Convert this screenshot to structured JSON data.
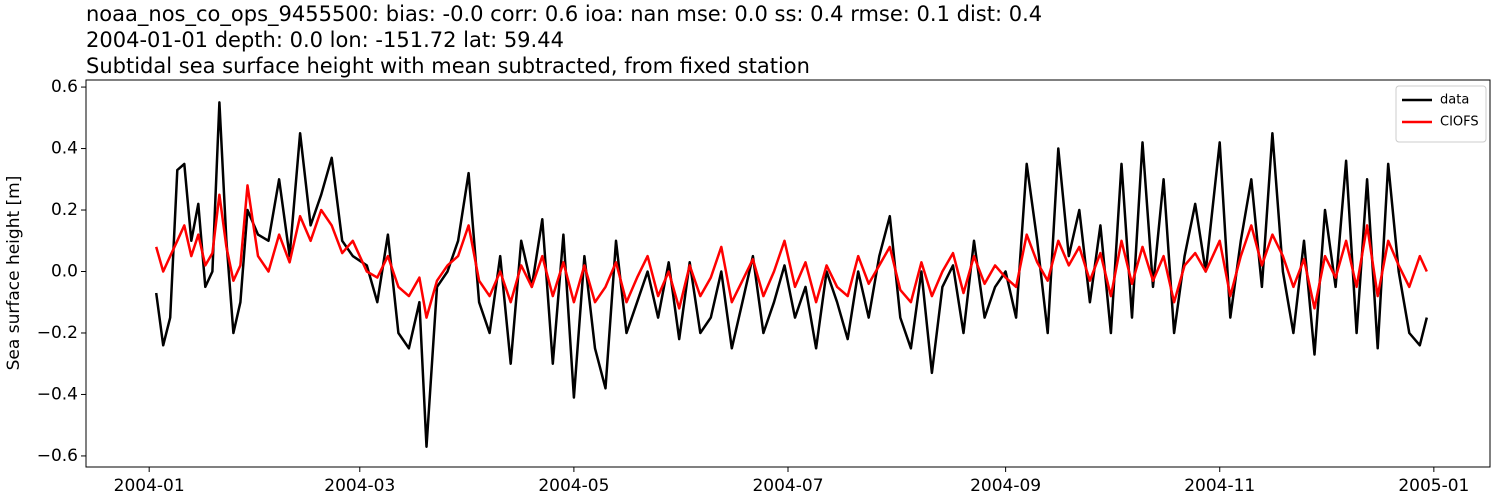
{
  "chart_data": {
    "type": "line",
    "title": "noaa_nos_co_ops_9455500: bias: -0.0  corr: 0.6  ioa: nan  mse: 0.0  ss: 0.4  rmse: 0.1  dist: 0.4",
    "subtitle": "2004-01-01 depth: 0.0 lon: -151.72 lat: 59.44",
    "subtitle2": "Subtidal sea surface height with mean subtracted, from fixed station",
    "ylabel": "Sea surface height [m]",
    "legend": "upper right",
    "xlim": [
      "2003-12-14",
      "2005-01-17"
    ],
    "xticks": [
      "2004-01",
      "2004-03",
      "2004-05",
      "2004-07",
      "2004-09",
      "2004-11",
      "2005-01"
    ],
    "ylim": [
      -0.636,
      0.623
    ],
    "yticks": [
      {
        "value": 0.6,
        "label": "0.6"
      },
      {
        "value": 0.4,
        "label": "0.4"
      },
      {
        "value": 0.2,
        "label": "0.2"
      },
      {
        "value": 0,
        "label": "0.0"
      },
      {
        "value": -0.2,
        "label": "−0.2"
      },
      {
        "value": -0.4,
        "label": "−0.4"
      },
      {
        "value": -0.6,
        "label": "−0.6"
      }
    ],
    "x": [
      "2004-01-03",
      "2004-01-05",
      "2004-01-07",
      "2004-01-09",
      "2004-01-11",
      "2004-01-13",
      "2004-01-15",
      "2004-01-17",
      "2004-01-19",
      "2004-01-21",
      "2004-01-23",
      "2004-01-25",
      "2004-01-27",
      "2004-01-29",
      "2004-02-01",
      "2004-02-04",
      "2004-02-07",
      "2004-02-10",
      "2004-02-13",
      "2004-02-16",
      "2004-02-19",
      "2004-02-22",
      "2004-02-25",
      "2004-02-28",
      "2004-03-03",
      "2004-03-06",
      "2004-03-09",
      "2004-03-12",
      "2004-03-15",
      "2004-03-18",
      "2004-03-20",
      "2004-03-23",
      "2004-03-26",
      "2004-03-29",
      "2004-04-01",
      "2004-04-04",
      "2004-04-07",
      "2004-04-10",
      "2004-04-13",
      "2004-04-16",
      "2004-04-19",
      "2004-04-22",
      "2004-04-25",
      "2004-04-28",
      "2004-05-01",
      "2004-05-04",
      "2004-05-07",
      "2004-05-10",
      "2004-05-13",
      "2004-05-16",
      "2004-05-19",
      "2004-05-22",
      "2004-05-25",
      "2004-05-28",
      "2004-05-31",
      "2004-06-03",
      "2004-06-06",
      "2004-06-09",
      "2004-06-12",
      "2004-06-15",
      "2004-06-18",
      "2004-06-21",
      "2004-06-24",
      "2004-06-27",
      "2004-06-30",
      "2004-07-03",
      "2004-07-06",
      "2004-07-09",
      "2004-07-12",
      "2004-07-15",
      "2004-07-18",
      "2004-07-21",
      "2004-07-24",
      "2004-07-27",
      "2004-07-30",
      "2004-08-02",
      "2004-08-05",
      "2004-08-08",
      "2004-08-11",
      "2004-08-14",
      "2004-08-17",
      "2004-08-20",
      "2004-08-23",
      "2004-08-26",
      "2004-08-29",
      "2004-09-01",
      "2004-09-04",
      "2004-09-07",
      "2004-09-10",
      "2004-09-13",
      "2004-09-16",
      "2004-09-19",
      "2004-09-22",
      "2004-09-25",
      "2004-09-28",
      "2004-10-01",
      "2004-10-04",
      "2004-10-07",
      "2004-10-10",
      "2004-10-13",
      "2004-10-16",
      "2004-10-19",
      "2004-10-22",
      "2004-10-25",
      "2004-10-28",
      "2004-11-01",
      "2004-11-04",
      "2004-11-07",
      "2004-11-10",
      "2004-11-13",
      "2004-11-16",
      "2004-11-19",
      "2004-11-22",
      "2004-11-25",
      "2004-11-28",
      "2004-12-01",
      "2004-12-04",
      "2004-12-07",
      "2004-12-10",
      "2004-12-13",
      "2004-12-16",
      "2004-12-19",
      "2004-12-22",
      "2004-12-25",
      "2004-12-28",
      "2004-12-30"
    ],
    "series": [
      {
        "name": "data",
        "color": "#000000",
        "values": [
          -0.07,
          -0.24,
          -0.15,
          0.33,
          0.35,
          0.1,
          0.22,
          -0.05,
          0.0,
          0.55,
          0.1,
          -0.2,
          -0.1,
          0.2,
          0.12,
          0.1,
          0.3,
          0.05,
          0.45,
          0.15,
          0.25,
          0.37,
          0.1,
          0.05,
          0.02,
          -0.1,
          0.12,
          -0.2,
          -0.25,
          -0.1,
          -0.57,
          -0.05,
          0.0,
          0.1,
          0.32,
          -0.1,
          -0.2,
          0.05,
          -0.3,
          0.1,
          -0.05,
          0.17,
          -0.3,
          0.12,
          -0.41,
          0.05,
          -0.25,
          -0.38,
          0.1,
          -0.2,
          -0.1,
          0.0,
          -0.15,
          0.03,
          -0.22,
          0.03,
          -0.2,
          -0.15,
          0.0,
          -0.25,
          -0.1,
          0.05,
          -0.2,
          -0.1,
          0.02,
          -0.15,
          -0.05,
          -0.25,
          0.0,
          -0.1,
          -0.22,
          0.0,
          -0.15,
          0.05,
          0.18,
          -0.15,
          -0.25,
          0.0,
          -0.33,
          -0.05,
          0.02,
          -0.2,
          0.1,
          -0.15,
          -0.05,
          0.0,
          -0.15,
          0.35,
          0.1,
          -0.2,
          0.4,
          0.05,
          0.2,
          -0.1,
          0.15,
          -0.2,
          0.35,
          -0.15,
          0.42,
          -0.05,
          0.3,
          -0.2,
          0.05,
          0.22,
          0.0,
          0.42,
          -0.15,
          0.1,
          0.3,
          -0.05,
          0.45,
          0.0,
          -0.2,
          0.1,
          -0.27,
          0.2,
          -0.05,
          0.36,
          -0.2,
          0.3,
          -0.25,
          0.35,
          0.0,
          -0.2,
          -0.24,
          -0.15
        ]
      },
      {
        "name": "CIOFS",
        "color": "#ff0000",
        "values": [
          0.08,
          0.0,
          0.05,
          0.1,
          0.15,
          0.05,
          0.12,
          0.02,
          0.06,
          0.25,
          0.08,
          -0.03,
          0.02,
          0.28,
          0.05,
          0.0,
          0.12,
          0.03,
          0.18,
          0.1,
          0.2,
          0.15,
          0.06,
          0.1,
          0.0,
          -0.02,
          0.05,
          -0.05,
          -0.08,
          -0.02,
          -0.15,
          -0.03,
          0.02,
          0.05,
          0.15,
          -0.03,
          -0.08,
          0.0,
          -0.1,
          0.02,
          -0.05,
          0.05,
          -0.08,
          0.03,
          -0.1,
          0.02,
          -0.1,
          -0.05,
          0.03,
          -0.1,
          -0.02,
          0.05,
          -0.08,
          0.0,
          -0.12,
          0.02,
          -0.08,
          -0.02,
          0.08,
          -0.1,
          -0.03,
          0.04,
          -0.08,
          0.0,
          0.1,
          -0.05,
          0.03,
          -0.1,
          0.02,
          -0.05,
          -0.08,
          0.05,
          -0.04,
          0.02,
          0.08,
          -0.06,
          -0.1,
          0.03,
          -0.08,
          0.0,
          0.06,
          -0.07,
          0.05,
          -0.04,
          0.02,
          -0.02,
          -0.05,
          0.12,
          0.03,
          -0.03,
          0.1,
          0.02,
          0.08,
          -0.03,
          0.06,
          -0.08,
          0.1,
          -0.04,
          0.08,
          -0.03,
          0.05,
          -0.1,
          0.02,
          0.06,
          0.0,
          0.1,
          -0.08,
          0.05,
          0.15,
          0.02,
          0.12,
          0.05,
          -0.05,
          0.04,
          -0.12,
          0.05,
          -0.02,
          0.1,
          -0.05,
          0.15,
          -0.08,
          0.1,
          0.02,
          -0.05,
          0.05,
          0.0
        ]
      }
    ]
  }
}
